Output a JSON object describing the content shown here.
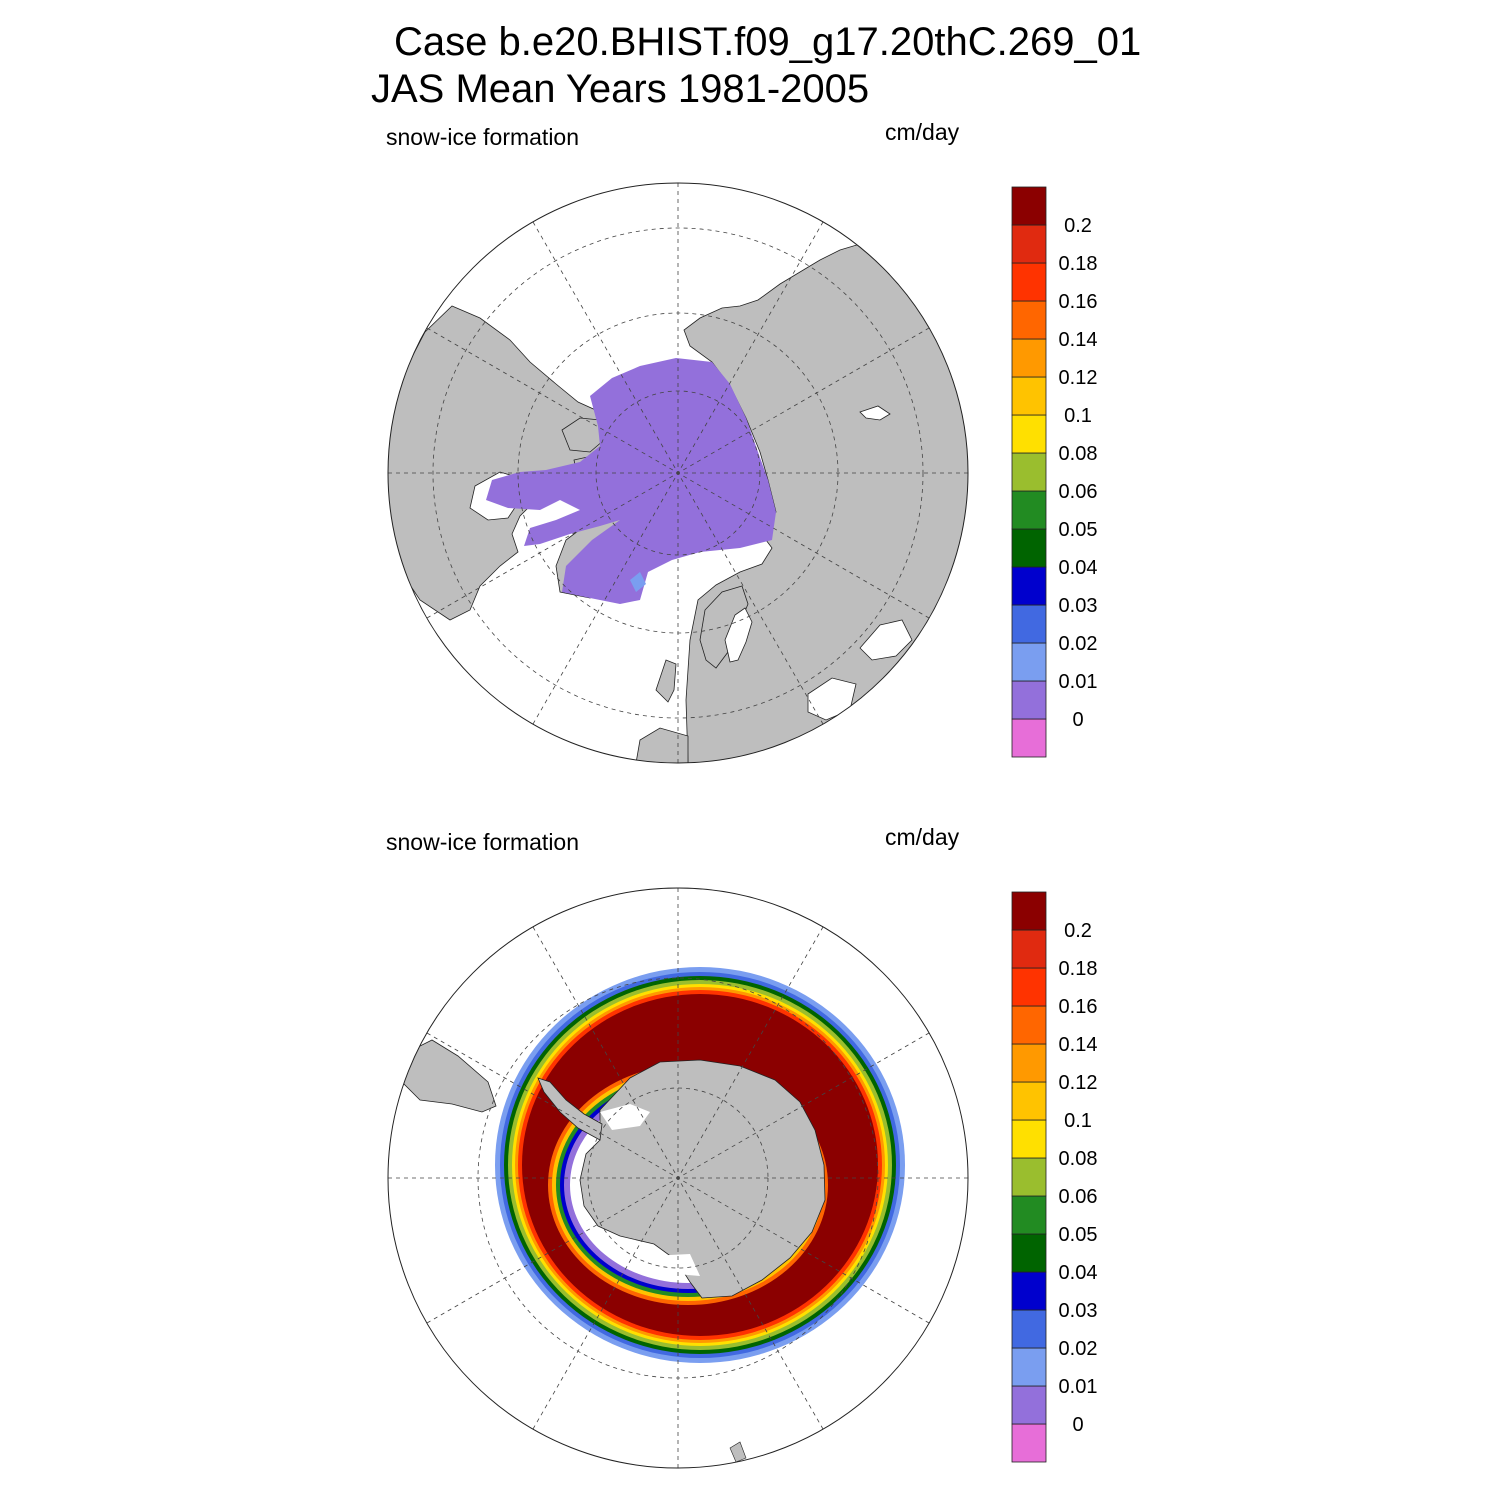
{
  "title": {
    "line1": "Case b.e20.BHIST.f09_g17.20thC.269_01",
    "line2": "JAS Mean   Years 1981-2005"
  },
  "colors": {
    "land": "#bebebe",
    "water": "#ffffff",
    "ice_zero_class": "#9370db",
    "ring_max": "#8b0000"
  },
  "colorbar": {
    "colors": [
      "#e76ed8",
      "#9370db",
      "#7a9ef0",
      "#4169e1",
      "#0000cd",
      "#006400",
      "#228b22",
      "#9abe2e",
      "#ffe000",
      "#ffc300",
      "#ff9900",
      "#ff6600",
      "#ff3300",
      "#e02a10",
      "#8b0000"
    ],
    "labels": [
      "0",
      "0.01",
      "0.02",
      "0.03",
      "0.04",
      "0.05",
      "0.06",
      "0.08",
      "0.1",
      "0.12",
      "0.14",
      "0.16",
      "0.18",
      "0.2"
    ]
  },
  "panels": [
    {
      "id": "arctic",
      "hemisphere": "north",
      "left_label": "snow-ice formation",
      "right_label": "cm/day"
    },
    {
      "id": "antarctic",
      "hemisphere": "south",
      "left_label": "snow-ice formation",
      "right_label": "cm/day"
    }
  ]
}
